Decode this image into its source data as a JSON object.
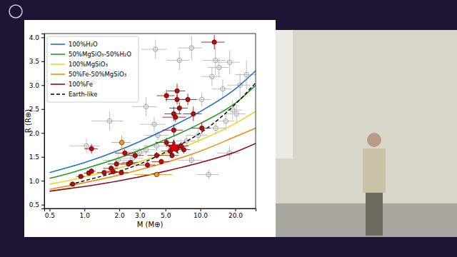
{
  "chart_data": {
    "type": "line",
    "x_label": "M (M⊕)",
    "y_label": "R (R⊕)",
    "log": "x",
    "grid": false,
    "legend": "upper left",
    "xlim": [
      0.45,
      30
    ],
    "ylim": [
      0.42,
      4.08
    ],
    "xticks": [
      0.5,
      {
        "value": 1,
        "label": "1.0"
      },
      {
        "value": 2,
        "label": "2.0"
      },
      {
        "value": 3,
        "label": "3.0"
      },
      {
        "value": 5,
        "label": "5.0"
      },
      {
        "value": 10,
        "label": "10.0"
      },
      {
        "value": 20,
        "label": "20.0"
      }
    ],
    "yticks": [
      0.5,
      {
        "value": 1,
        "label": "1.0"
      },
      1.5,
      {
        "value": 2,
        "label": "2.0"
      },
      2.5,
      {
        "value": 3,
        "label": "3.0"
      },
      3.5,
      {
        "value": 4,
        "label": "4.0"
      }
    ],
    "x": [
      0.5,
      0.75,
      1,
      2,
      3,
      5,
      10,
      20,
      30
    ],
    "series": [
      {
        "name": "100%H₂O",
        "color": "#1f6fd1",
        "type": "line",
        "line_style": "solid",
        "values": [
          1.17,
          1.29,
          1.38,
          1.64,
          1.82,
          2.07,
          2.45,
          2.92,
          3.3
        ]
      },
      {
        "name": "50%MgSiO₃-50%H₂O",
        "color": "#1e9e1e",
        "type": "line",
        "line_style": "solid",
        "values": [
          1.05,
          1.16,
          1.25,
          1.48,
          1.64,
          1.86,
          2.2,
          2.62,
          3.0
        ]
      },
      {
        "name": "100%MgSiO₃",
        "color": "#f2d21b",
        "type": "line",
        "line_style": "solid",
        "values": [
          0.93,
          1.01,
          1.08,
          1.27,
          1.4,
          1.57,
          1.85,
          2.2,
          2.45
        ]
      },
      {
        "name": "50%Fe-50%MgSiO₃",
        "color": "#f28c14",
        "type": "line",
        "line_style": "solid",
        "values": [
          0.82,
          0.9,
          0.96,
          1.12,
          1.23,
          1.38,
          1.62,
          1.92,
          2.1
        ]
      },
      {
        "name": "100%Fe",
        "color": "#8b0d12",
        "type": "line",
        "line_style": "solid",
        "values": [
          0.78,
          0.84,
          0.88,
          1.0,
          1.08,
          1.2,
          1.38,
          1.6,
          1.78
        ]
      },
      {
        "name": "Earth-like",
        "color": "#000000",
        "type": "line",
        "line_style": "dashed",
        "values": [
          null,
          0.92,
          1.0,
          1.2,
          1.35,
          1.6,
          2.0,
          2.6,
          3.05
        ]
      },
      {
        "type": "scatter",
        "marker": "open_circle",
        "color": "#9a9a9a",
        "x": [
          4.1,
          8.4,
          6.6,
          13.5,
          14.5,
          17.9,
          12.6,
          15.6,
          10.3,
          22.0,
          25.0,
          19.0,
          3.4,
          4.0,
          4.3,
          3.4,
          3.0,
          4.2,
          7.6,
          9.6,
          13.6,
          16.6,
          20.5,
          11.8,
          8.4,
          17.9,
          2.6,
          1.95,
          1.04,
          1.65
        ],
        "values": [
          3.75,
          3.78,
          3.52,
          3.52,
          3.37,
          3.48,
          3.18,
          2.92,
          2.7,
          3.0,
          3.22,
          2.48,
          2.55,
          2.18,
          1.95,
          1.65,
          1.6,
          1.73,
          1.83,
          1.95,
          2.1,
          2.25,
          2.4,
          1.13,
          1.43,
          1.58,
          1.47,
          1.43,
          1.73,
          2.25
        ],
        "y_error": [
          0.2,
          0.25,
          0.2,
          0.3,
          0.2,
          0.25,
          0.2,
          0.2,
          0.15,
          0.25,
          0.3,
          0.2,
          0.2,
          0.15,
          0.1,
          0.1,
          0.1,
          0.1,
          0.12,
          0.15,
          0.15,
          0.2,
          0.2,
          0.1,
          0.1,
          0.15,
          0.1,
          0.1,
          0.15,
          0.2
        ],
        "x_error": [
          1.0,
          2.0,
          1.5,
          3.0,
          3.0,
          4.0,
          2.5,
          3.0,
          2.0,
          5.0,
          5.0,
          4.0,
          0.8,
          1.0,
          1.0,
          0.8,
          0.7,
          1.0,
          1.5,
          2.0,
          3.0,
          3.0,
          4.0,
          2.5,
          2.0,
          4.0,
          0.6,
          0.5,
          0.3,
          0.5
        ]
      },
      {
        "type": "scatter",
        "marker": "circle",
        "color": "#b50d0d",
        "x": [
          0.79,
          0.93,
          1.09,
          1.15,
          1.15,
          1.48,
          1.7,
          1.77,
          1.89,
          2.08,
          2.23,
          2.4,
          2.5,
          2.74,
          3.5,
          4.2,
          4.6,
          5.1,
          5.5,
          5.7,
          6.3,
          6.8,
          7.2,
          5.9,
          5.1,
          6.3,
          6.3,
          6.6,
          5.9,
          6.1,
          7.8,
          8.7,
          10.3,
          13.2
        ],
        "values": [
          0.93,
          1.09,
          1.16,
          1.2,
          1.67,
          1.17,
          1.26,
          1.19,
          1.35,
          1.17,
          1.58,
          1.35,
          1.38,
          1.53,
          1.33,
          1.53,
          1.4,
          1.8,
          1.62,
          1.53,
          1.68,
          1.73,
          1.65,
          2.06,
          2.78,
          2.88,
          2.7,
          2.52,
          2.4,
          2.33,
          2.7,
          2.4,
          2.1,
          3.9
        ],
        "y_error": [
          0.03,
          0.04,
          0.04,
          0.05,
          0.1,
          0.05,
          0.06,
          0.05,
          0.06,
          0.05,
          0.08,
          0.06,
          0.05,
          0.07,
          0.06,
          0.07,
          0.06,
          0.1,
          0.08,
          0.07,
          0.09,
          0.08,
          0.08,
          0.12,
          0.12,
          0.15,
          0.1,
          0.12,
          0.15,
          0.1,
          0.12,
          0.15,
          0.12,
          0.15
        ],
        "x_error": [
          0.05,
          0.08,
          0.1,
          0.1,
          0.15,
          0.2,
          0.25,
          0.2,
          0.3,
          0.3,
          0.4,
          0.35,
          0.4,
          0.5,
          0.6,
          0.7,
          0.8,
          1.0,
          0.9,
          0.8,
          1.0,
          1.1,
          1.0,
          1.2,
          0.9,
          1.1,
          1.3,
          1.2,
          1.0,
          1.4,
          1.5,
          1.6,
          2.0,
          3.0
        ]
      },
      {
        "type": "scatter",
        "marker": "circle",
        "color": "#f59a1a",
        "x": [
          4.2,
          2.1
        ],
        "values": [
          1.13,
          1.8
        ],
        "y_error": [
          0.05,
          0.15
        ],
        "x_error": [
          1.5,
          0.4
        ]
      },
      {
        "type": "scatter",
        "marker": "star",
        "color": "#d40000",
        "x": [
          5.9
        ],
        "values": [
          1.7
        ]
      }
    ]
  }
}
